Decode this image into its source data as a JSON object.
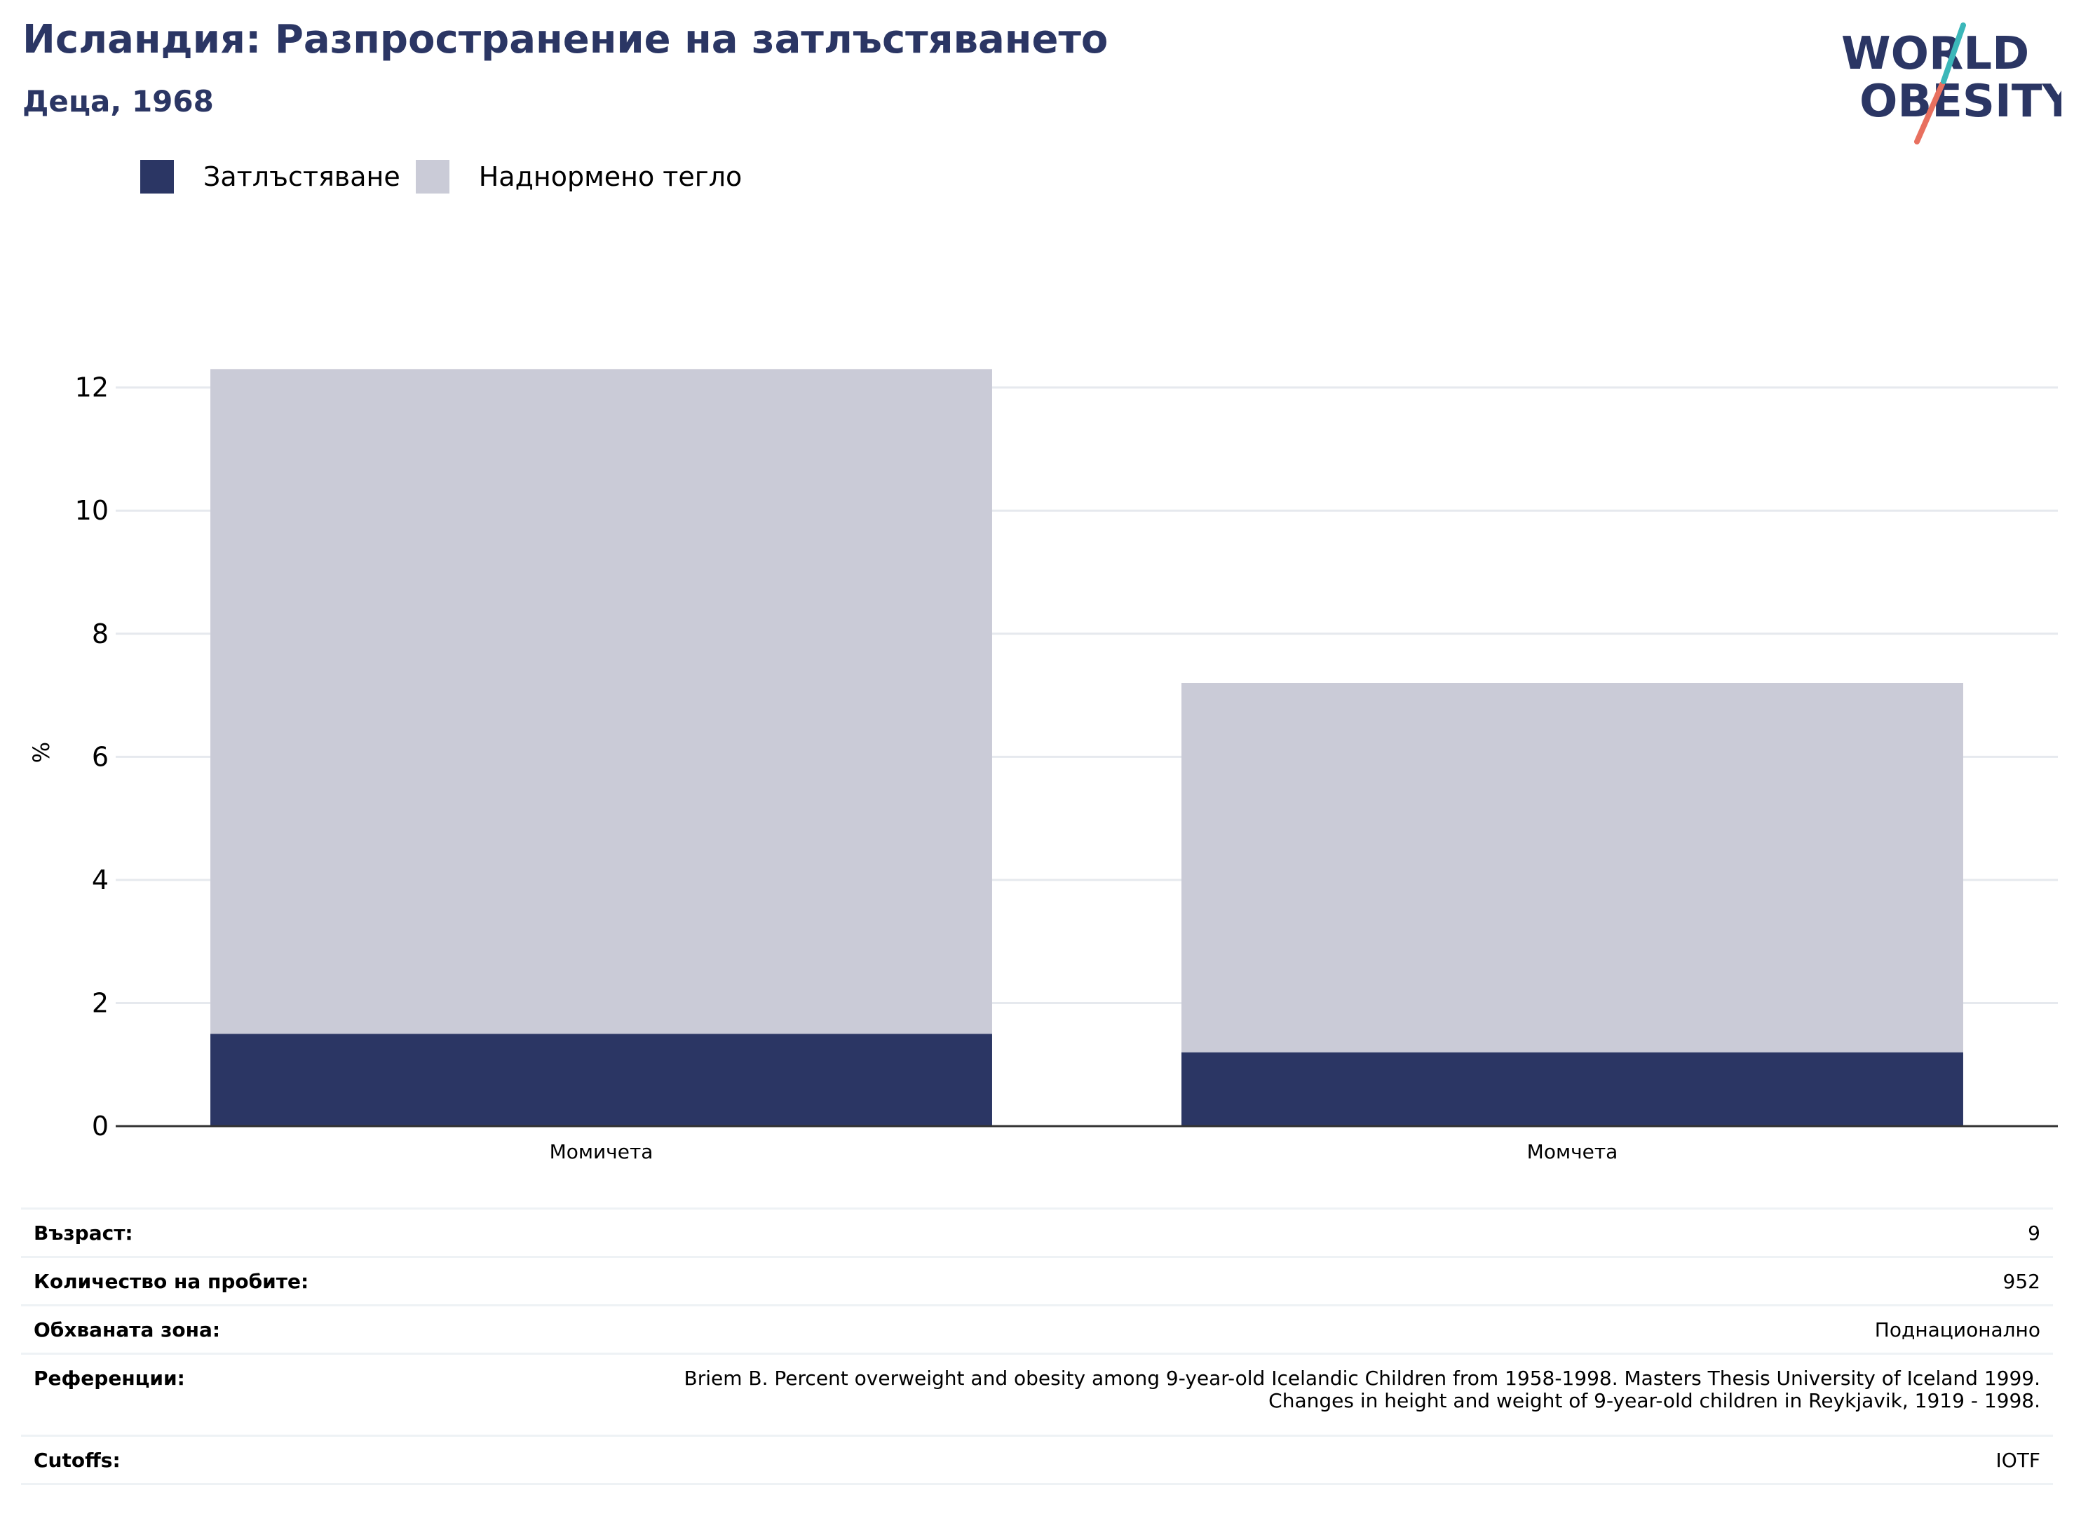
{
  "header": {
    "title": "Исландия: Разпространение на затлъстяването",
    "subtitle": "Деца, 1968"
  },
  "logo": {
    "line1": "WORLD",
    "line2": "OBESITY"
  },
  "colors": {
    "title": "#2b3664",
    "obesity": "#2b3664",
    "overweight": "#cacbd7",
    "grid": "#e6e9ee",
    "axis": "#333333",
    "logo_teal": "#3bb7b9",
    "logo_red": "#e8705f"
  },
  "chart_data": {
    "type": "bar",
    "stacked": true,
    "categories": [
      "Момичета",
      "Момчета"
    ],
    "series": [
      {
        "name": "Затлъстяване",
        "values": [
          1.5,
          1.2
        ]
      },
      {
        "name": "Наднормено тегло",
        "values": [
          10.8,
          6.0
        ]
      }
    ],
    "ylabel": "%",
    "xlabel": "",
    "ylim": [
      0,
      12.6
    ],
    "yticks": [
      0,
      2,
      4,
      6,
      8,
      10,
      12
    ],
    "grid": true,
    "legend": "top-left"
  },
  "info": [
    {
      "label": "Възраст:",
      "value": [
        "9"
      ]
    },
    {
      "label": "Количество на пробите:",
      "value": [
        "952"
      ]
    },
    {
      "label": "Обхваната зона:",
      "value": [
        "Поднационално"
      ]
    },
    {
      "label": "Референции:",
      "value": [
        "Briem B. Percent overweight and obesity among 9-year-old Icelandic Children from 1958-1998. Masters Thesis University of Iceland 1999.",
        "Changes in height and weight of 9-year-old children in Reykjavik, 1919 - 1998."
      ]
    },
    {
      "label": "Cutoffs:",
      "value": [
        "IOTF"
      ]
    }
  ]
}
